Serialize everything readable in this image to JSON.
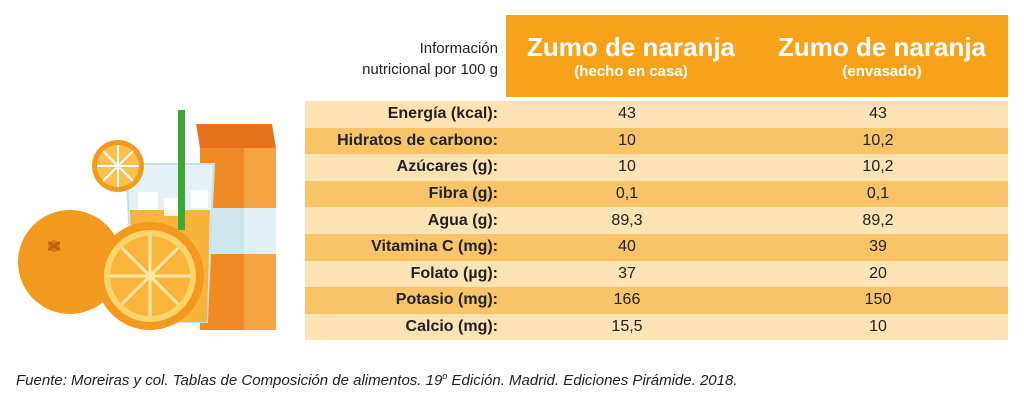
{
  "header": {
    "info_line1": "Información",
    "info_line2": "nutricional por 100 g",
    "col1_title": "Zumo de naranja",
    "col1_subtitle": "(hecho en casa)",
    "col2_title": "Zumo de naranja",
    "col2_subtitle": "(envasado)"
  },
  "rows": [
    {
      "label": "Energía (kcal):",
      "homemade": "43",
      "packaged": "43"
    },
    {
      "label": "Hidratos de carbono:",
      "homemade": "10",
      "packaged": "10,2"
    },
    {
      "label": "Azúcares (g):",
      "homemade": "10",
      "packaged": "10,2"
    },
    {
      "label": "Fibra (g):",
      "homemade": "0,1",
      "packaged": "0,1"
    },
    {
      "label": "Agua (g):",
      "homemade": "89,3",
      "packaged": "89,2"
    },
    {
      "label": "Vitamina C (mg):",
      "homemade": "40",
      "packaged": "39"
    },
    {
      "label": "Folato (µg):",
      "homemade": "37",
      "packaged": "20"
    },
    {
      "label": "Potasio (mg):",
      "homemade": "166",
      "packaged": "150"
    },
    {
      "label": "Calcio (mg):",
      "homemade": "15,5",
      "packaged": "10"
    }
  ],
  "source": {
    "before": "Fuente:  Moreiras y col. Tablas de Composición de alimentos. 19",
    "ordinal": "o",
    "after": " Edición. Madrid. Ediciones Pirámide. 2018."
  },
  "colors": {
    "header_orange": "#f7a21b",
    "row_light": "#fce3b4",
    "row_dark": "#f9c36a"
  },
  "icons": [
    "orange-fruit-icon",
    "orange-slice-icon",
    "juice-glass-icon",
    "juice-carton-icon",
    "straw-icon"
  ]
}
